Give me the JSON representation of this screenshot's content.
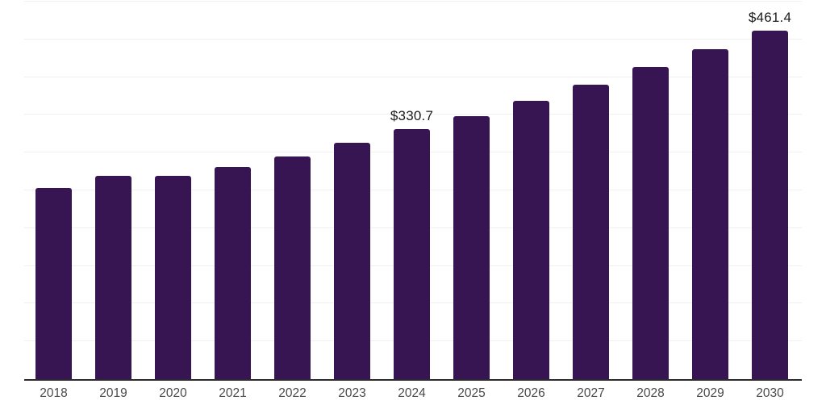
{
  "chart_data": {
    "type": "bar",
    "title": "",
    "xlabel": "",
    "ylabel": "",
    "categories": [
      "2018",
      "2019",
      "2020",
      "2021",
      "2022",
      "2023",
      "2024",
      "2025",
      "2026",
      "2027",
      "2028",
      "2029",
      "2030"
    ],
    "values": [
      253.4,
      269.5,
      269.2,
      281.0,
      294.8,
      313.5,
      330.7,
      348.4,
      368.7,
      390.1,
      413.2,
      437.0,
      461.4
    ],
    "value_labels": [
      "",
      "",
      "",
      "",
      "",
      "",
      "$330.7",
      "",
      "",
      "",
      "",
      "",
      "$461.4"
    ],
    "ylim": [
      0,
      500
    ],
    "grid_step": 50,
    "grid": "horizontal-only",
    "legend_position": "none",
    "y_tick_labels_visible": false,
    "colors": {
      "bar": "#371552",
      "axis_line": "#2b2b2b",
      "gridline": "#f0f0f1",
      "value_label": "#1a1a1a",
      "tick_label": "#4a4a4a",
      "background": "#ffffff"
    }
  }
}
